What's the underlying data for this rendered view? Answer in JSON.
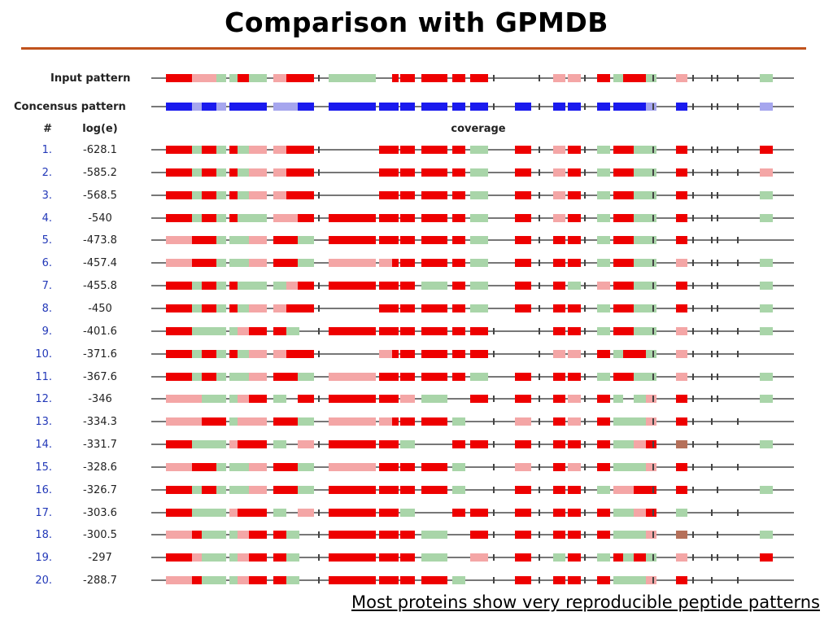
{
  "slide": {
    "title": "Comparison with GPMDB",
    "footnote": "Most proteins show very reproducible peptide patterns"
  },
  "labels": {
    "input_pattern": "Input pattern",
    "consensus_pattern": "Concensus pattern",
    "col_num": "#",
    "col_loge": "log(e)",
    "col_coverage": "coverage"
  },
  "colors": {
    "red": "#ee0000",
    "pink": "#f4a6a6",
    "green": "#a9d5a9",
    "brown": "#b5705a",
    "blue": "#1a1aee",
    "lightblue": "#a6a6ee",
    "line": "#777777"
  },
  "rows": [
    {
      "num": "1.",
      "loge": "-628.1"
    },
    {
      "num": "2.",
      "loge": "-585.2"
    },
    {
      "num": "3.",
      "loge": "-568.5"
    },
    {
      "num": "4.",
      "loge": "-540"
    },
    {
      "num": "5.",
      "loge": "-473.8"
    },
    {
      "num": "6.",
      "loge": "-457.4"
    },
    {
      "num": "7.",
      "loge": "-455.8"
    },
    {
      "num": "8.",
      "loge": "-450"
    },
    {
      "num": "9.",
      "loge": "-401.6"
    },
    {
      "num": "10.",
      "loge": "-371.6"
    },
    {
      "num": "11.",
      "loge": "-367.6"
    },
    {
      "num": "12.",
      "loge": "-346"
    },
    {
      "num": "13.",
      "loge": "-334.3"
    },
    {
      "num": "14.",
      "loge": "-331.7"
    },
    {
      "num": "15.",
      "loge": "-328.6"
    },
    {
      "num": "16.",
      "loge": "-326.7"
    },
    {
      "num": "17.",
      "loge": "-303.6"
    },
    {
      "num": "18.",
      "loge": "-300.5"
    },
    {
      "num": "19.",
      "loge": "-297"
    },
    {
      "num": "20.",
      "loge": "-288.7"
    }
  ]
}
